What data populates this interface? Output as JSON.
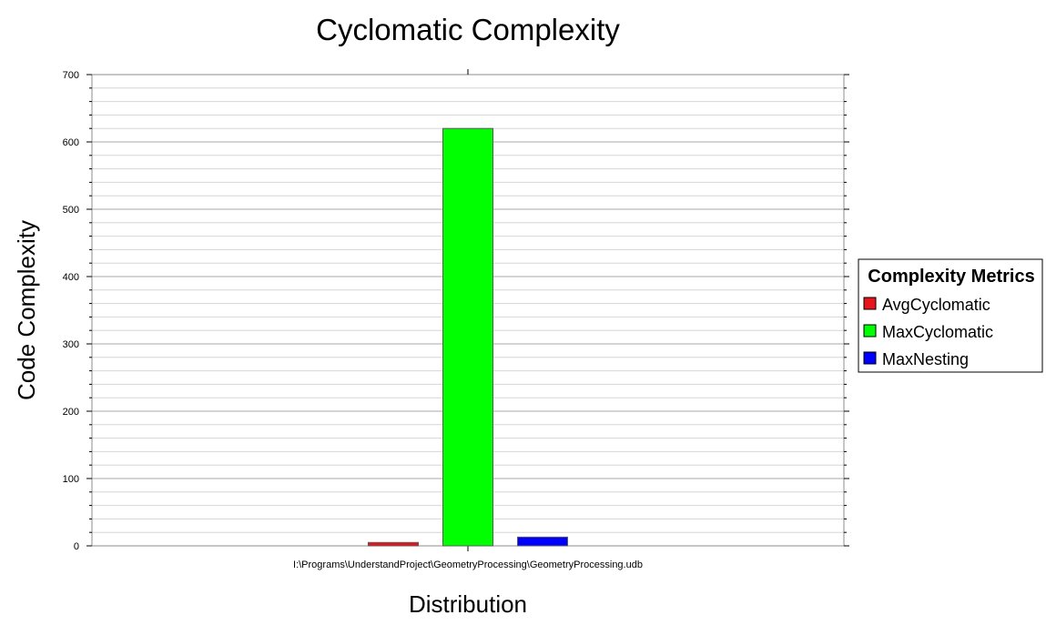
{
  "chart_data": {
    "type": "bar",
    "title": "Cyclomatic Complexity",
    "xlabel": "Distribution",
    "ylabel": "Code Complexity",
    "categories": [
      "I:\\Programs\\UnderstandProject\\GeometryProcessing\\GeometryProcessing.udb"
    ],
    "ylim": [
      0,
      700
    ],
    "yticks": [
      0,
      100,
      200,
      300,
      400,
      500,
      600,
      700
    ],
    "grid": true,
    "legend": {
      "title": "Complexity Metrics",
      "placement": "right"
    },
    "series": [
      {
        "name": "AvgCyclomatic",
        "values": [
          5
        ],
        "color": "#e8141b"
      },
      {
        "name": "MaxCyclomatic",
        "values": [
          620
        ],
        "color": "#00ff00"
      },
      {
        "name": "MaxNesting",
        "values": [
          13
        ],
        "color": "#0000ff"
      }
    ]
  }
}
